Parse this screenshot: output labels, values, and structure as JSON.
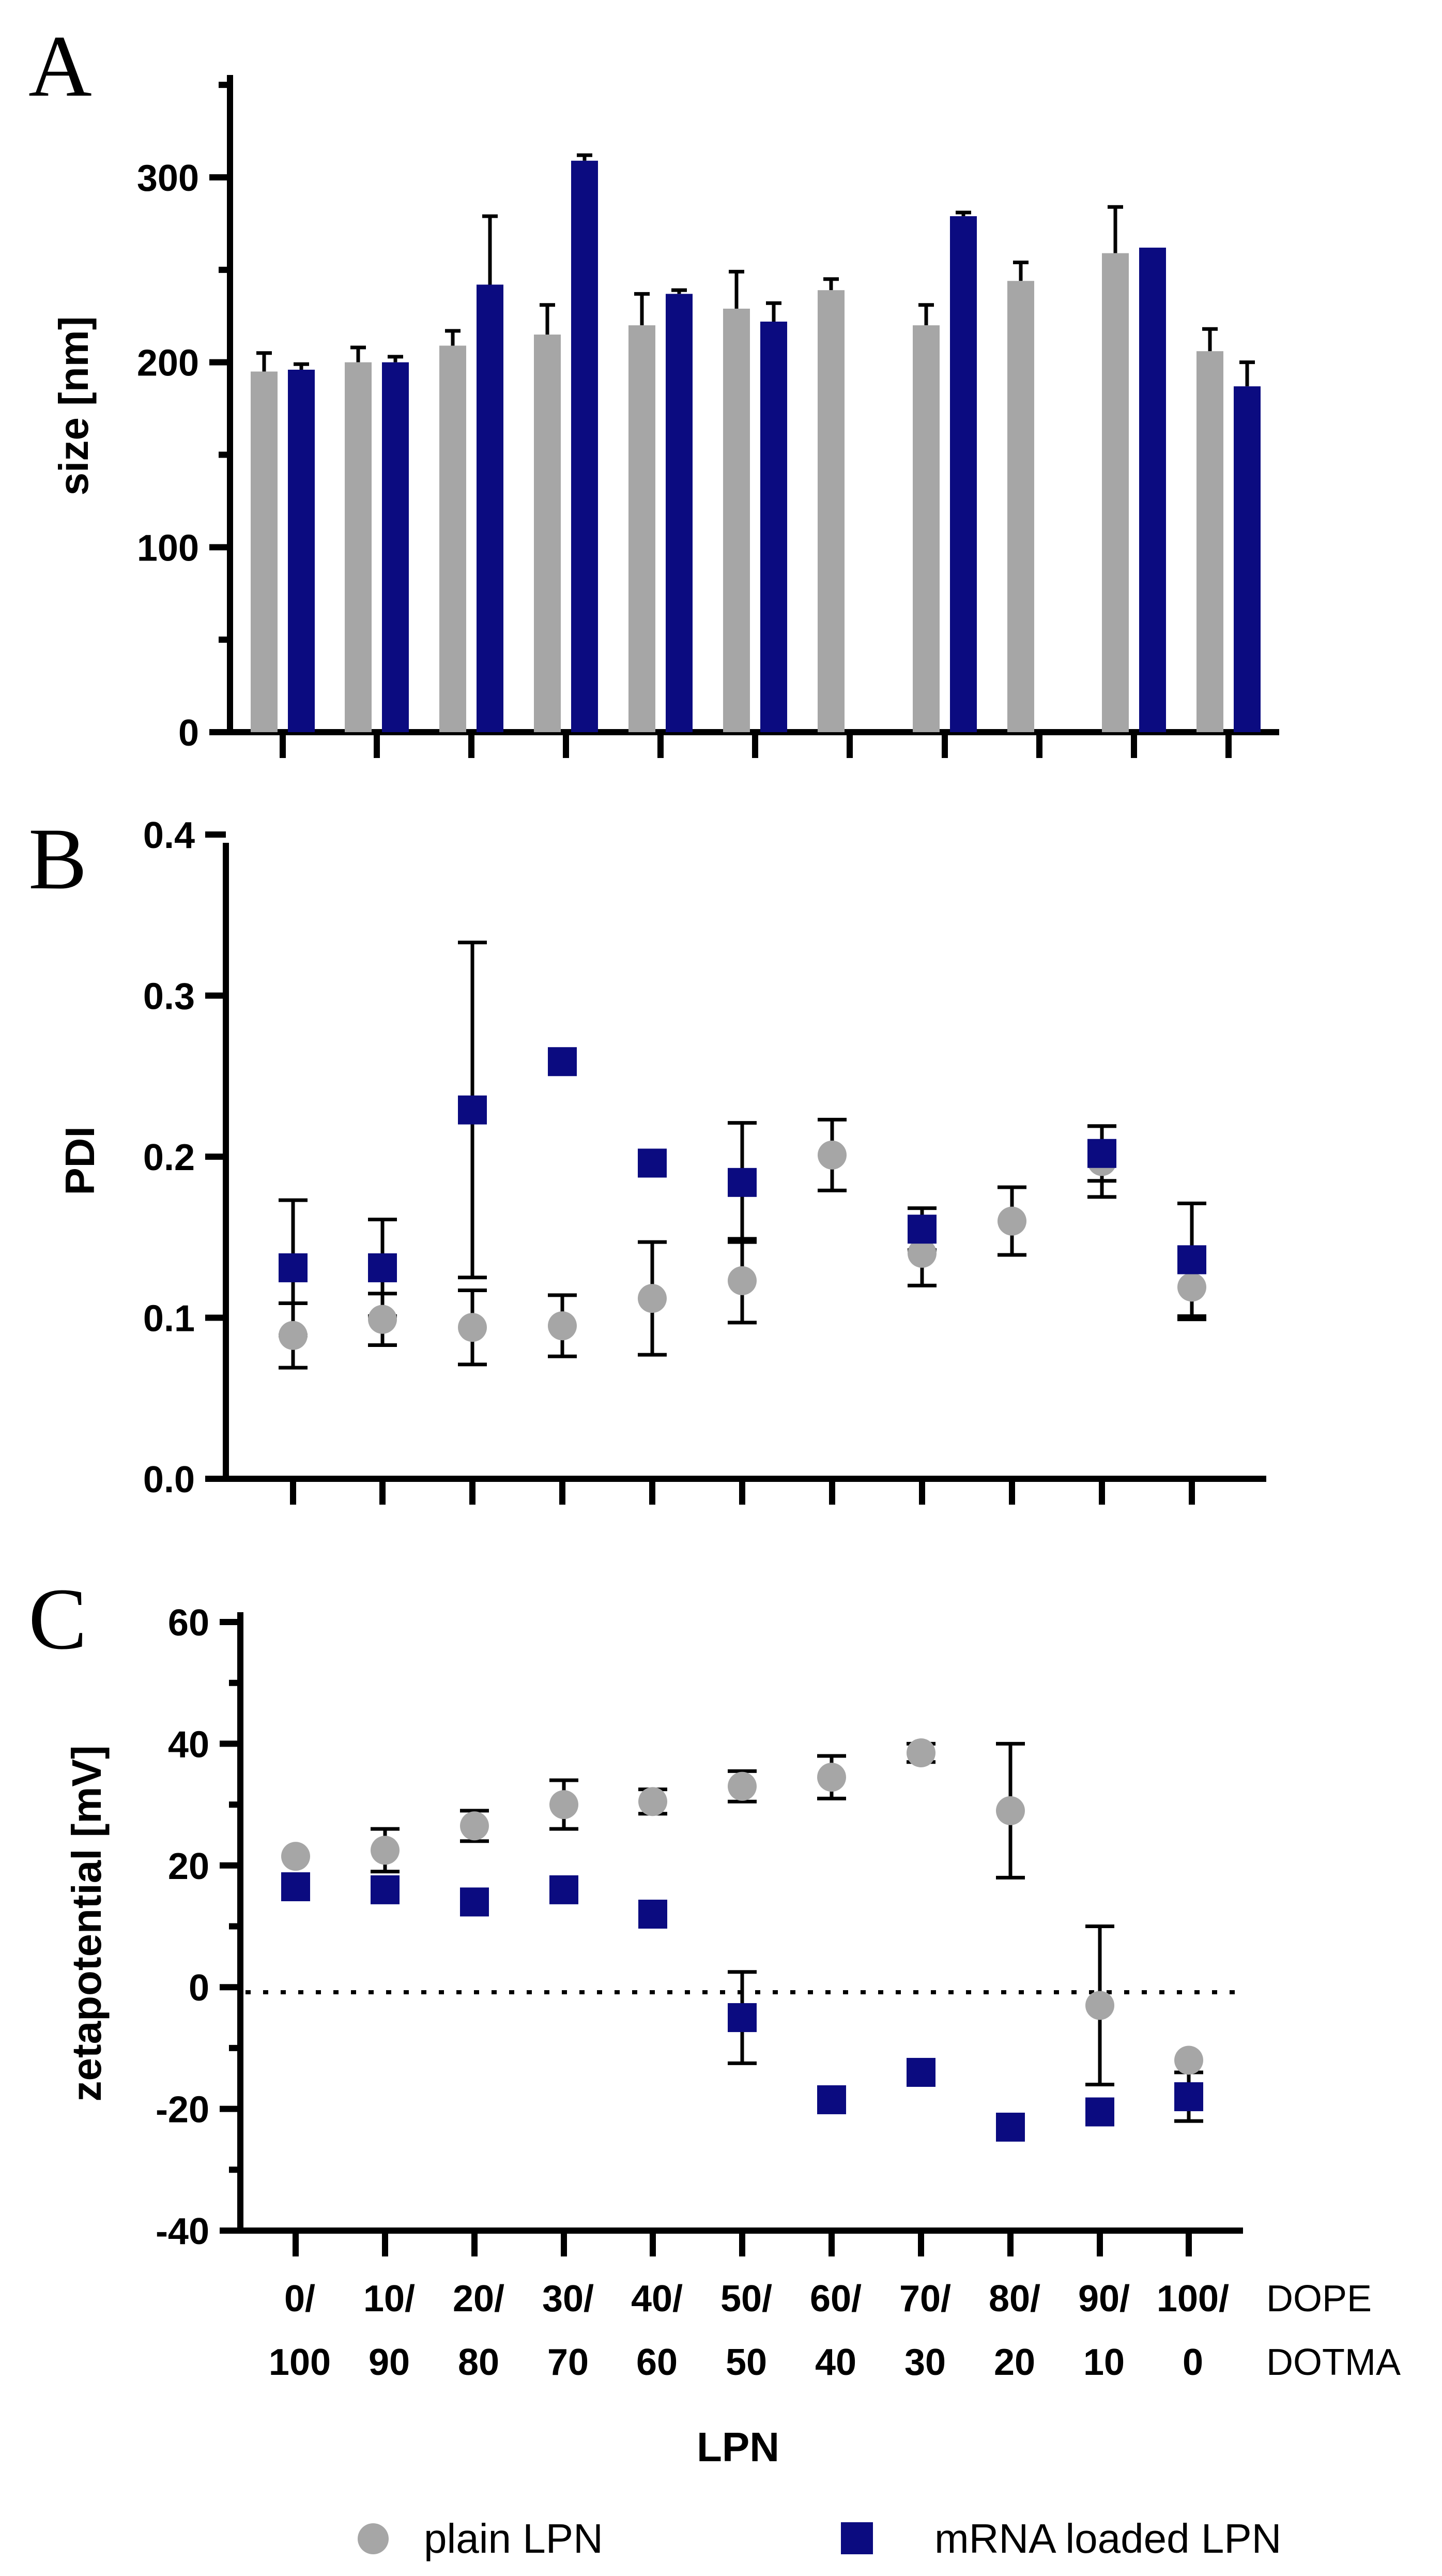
{
  "colors": {
    "plain": "#a6a6a6",
    "mrna": "#0b0b80",
    "axis": "#000000"
  },
  "chart_data": [
    {
      "panel": "A",
      "type": "bar",
      "ylabel": "size [nm]",
      "ylim": [
        0,
        350
      ],
      "yticks": [
        0,
        100,
        200,
        300
      ],
      "categories": [
        "0/100",
        "10/90",
        "20/80",
        "30/70",
        "40/60",
        "50/50",
        "60/40",
        "70/30",
        "80/20",
        "90/10",
        "100/0"
      ],
      "series": [
        {
          "key": "plain",
          "values": [
            195,
            200,
            209,
            215,
            220,
            229,
            239,
            220,
            244,
            259,
            206
          ],
          "errors": [
            10,
            8,
            8,
            16,
            17,
            20,
            6,
            11,
            10,
            25,
            12
          ]
        },
        {
          "key": "mrna",
          "values": [
            196,
            200,
            242,
            309,
            237,
            222,
            null,
            279,
            null,
            262,
            187
          ],
          "errors": [
            3,
            3,
            37,
            3,
            2,
            10,
            null,
            2,
            null,
            0,
            13
          ]
        }
      ]
    },
    {
      "panel": "B",
      "type": "scatter",
      "ylabel": "PDI",
      "ylim": [
        0,
        0.4
      ],
      "yticks": [
        "0.0",
        "0.1",
        "0.2",
        "0.3",
        "0.4"
      ],
      "categories": [
        "0/100",
        "10/90",
        "20/80",
        "30/70",
        "40/60",
        "50/50",
        "60/40",
        "70/30",
        "80/20",
        "90/10",
        "100/0"
      ],
      "series": [
        {
          "key": "plain",
          "values": [
            0.089,
            0.099,
            0.094,
            0.095,
            0.112,
            0.123,
            0.201,
            0.14,
            0.16,
            0.197,
            0.119
          ],
          "errors": [
            0.02,
            0.016,
            0.023,
            0.019,
            0.035,
            0.026,
            0.022,
            0.02,
            0.021,
            0.022,
            0.02
          ]
        },
        {
          "key": "mrna",
          "values": [
            0.131,
            0.131,
            0.229,
            0.259,
            0.196,
            0.184,
            null,
            0.155,
            null,
            0.202,
            0.136
          ],
          "errors": [
            0.042,
            0.03,
            0.104,
            0,
            0,
            0.037,
            null,
            0.013,
            null,
            0.017,
            0.035
          ]
        }
      ]
    },
    {
      "panel": "C",
      "type": "scatter",
      "ylabel": "zetapotential [mV]",
      "ylim": [
        -40,
        60
      ],
      "yticks": [
        -40,
        -20,
        0,
        20,
        40,
        60
      ],
      "xlabel": "LPN",
      "categories": [
        "0/100",
        "10/90",
        "20/80",
        "30/70",
        "40/60",
        "50/50",
        "60/40",
        "70/30",
        "80/20",
        "90/10",
        "100/0"
      ],
      "series": [
        {
          "key": "plain",
          "values": [
            21.5,
            22.5,
            26.5,
            30,
            30.5,
            33,
            34.5,
            38.5,
            29,
            -3,
            -12
          ],
          "errors": [
            0,
            3.5,
            2.5,
            4,
            2,
            2.5,
            3.5,
            1.5,
            11,
            13,
            0
          ]
        },
        {
          "key": "mrna",
          "values": [
            16.5,
            16,
            14,
            16,
            12,
            -5,
            -18.5,
            -14,
            -23,
            -20.5,
            -18
          ],
          "errors": [
            0,
            0,
            0,
            0,
            0,
            7.5,
            0,
            0,
            0,
            0,
            4
          ]
        }
      ]
    }
  ],
  "panels": {
    "a": "A",
    "b": "B",
    "c": "C"
  },
  "x_axis": {
    "labels_top": [
      "0/",
      "10/",
      "20/",
      "30/",
      "40/",
      "50/",
      "60/",
      "70/",
      "80/",
      "90/",
      "100/"
    ],
    "labels_bottom": [
      "100",
      "90",
      "80",
      "70",
      "60",
      "50",
      "40",
      "30",
      "20",
      "10",
      "0"
    ],
    "row_label_top": "DOPE",
    "row_label_bottom": "DOTMA",
    "title": "LPN"
  },
  "legend": {
    "plain": "plain LPN",
    "mrna": "mRNA loaded LPN"
  }
}
